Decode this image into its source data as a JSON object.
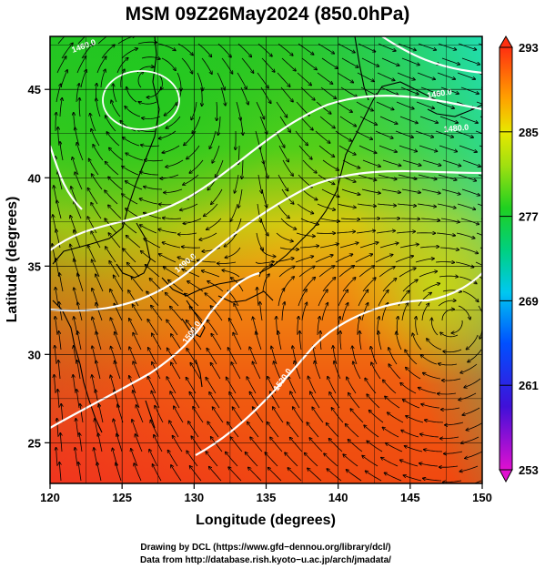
{
  "title": "MSM 09Z26May2024 (850.0hPa)",
  "xlabel": "Longitude (degrees)",
  "ylabel": "Latitude  (degrees)",
  "xticks": [
    "120",
    "125",
    "130",
    "135",
    "140",
    "145",
    "150"
  ],
  "yticks": [
    "25",
    "30",
    "35",
    "40",
    "45"
  ],
  "colorbar": {
    "ticks": [
      "293",
      "285",
      "277",
      "269",
      "261",
      "253"
    ],
    "min": 253,
    "max": 293
  },
  "contour_labels": [
    "1460.0",
    "1480.0",
    "1490.0",
    "1500.0",
    "1520.0"
  ],
  "credit": {
    "line1": "Drawing by DCL (https://www.gfd−dennou.org/library/dcl/)",
    "line2": "Data from http://database.rish.kyoto−u.ac.jp/arch/jmadata/"
  },
  "map": {
    "lon_range": [
      120,
      150
    ],
    "lat_range": [
      22.7,
      48
    ],
    "low_centers": [
      [
        126.8,
        45.6
      ],
      [
        148,
        32
      ]
    ]
  }
}
